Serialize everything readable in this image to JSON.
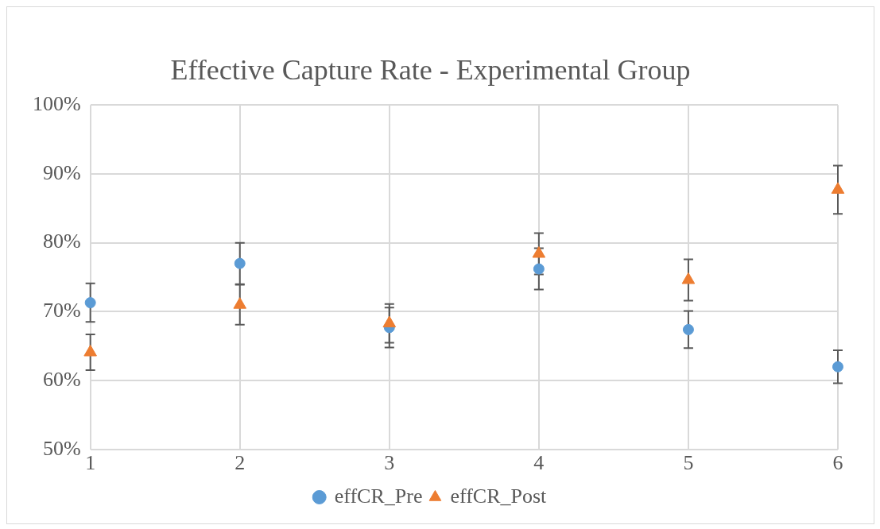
{
  "chart_data": {
    "type": "scatter",
    "title": "Effective Capture Rate - Experimental Group",
    "x": [
      1,
      2,
      3,
      4,
      5,
      6
    ],
    "series": [
      {
        "name": "effCR_Pre",
        "color": "#5b9bd5",
        "marker": "circle",
        "values": [
          71.3,
          77.0,
          67.7,
          76.2,
          67.4,
          62.0
        ],
        "errors": [
          2.8,
          3.0,
          2.9,
          3.0,
          2.7,
          2.4
        ]
      },
      {
        "name": "effCR_Post",
        "color": "#ed7d31",
        "marker": "triangle",
        "values": [
          64.1,
          71.0,
          68.3,
          78.4,
          74.6,
          87.7
        ],
        "errors": [
          2.6,
          2.9,
          2.8,
          3.0,
          3.0,
          3.5
        ]
      }
    ],
    "xlim": [
      1,
      6
    ],
    "xticks": [
      1,
      2,
      3,
      4,
      5,
      6
    ],
    "ylim": [
      50,
      100
    ],
    "yticks": [
      {
        "value": 50,
        "label": "50%"
      },
      {
        "value": 60,
        "label": "60%"
      },
      {
        "value": 70,
        "label": "70%"
      },
      {
        "value": 80,
        "label": "80%"
      },
      {
        "value": 90,
        "label": "90%"
      },
      {
        "value": 100,
        "label": "100%"
      }
    ],
    "grid": true,
    "legend": "bottom"
  }
}
